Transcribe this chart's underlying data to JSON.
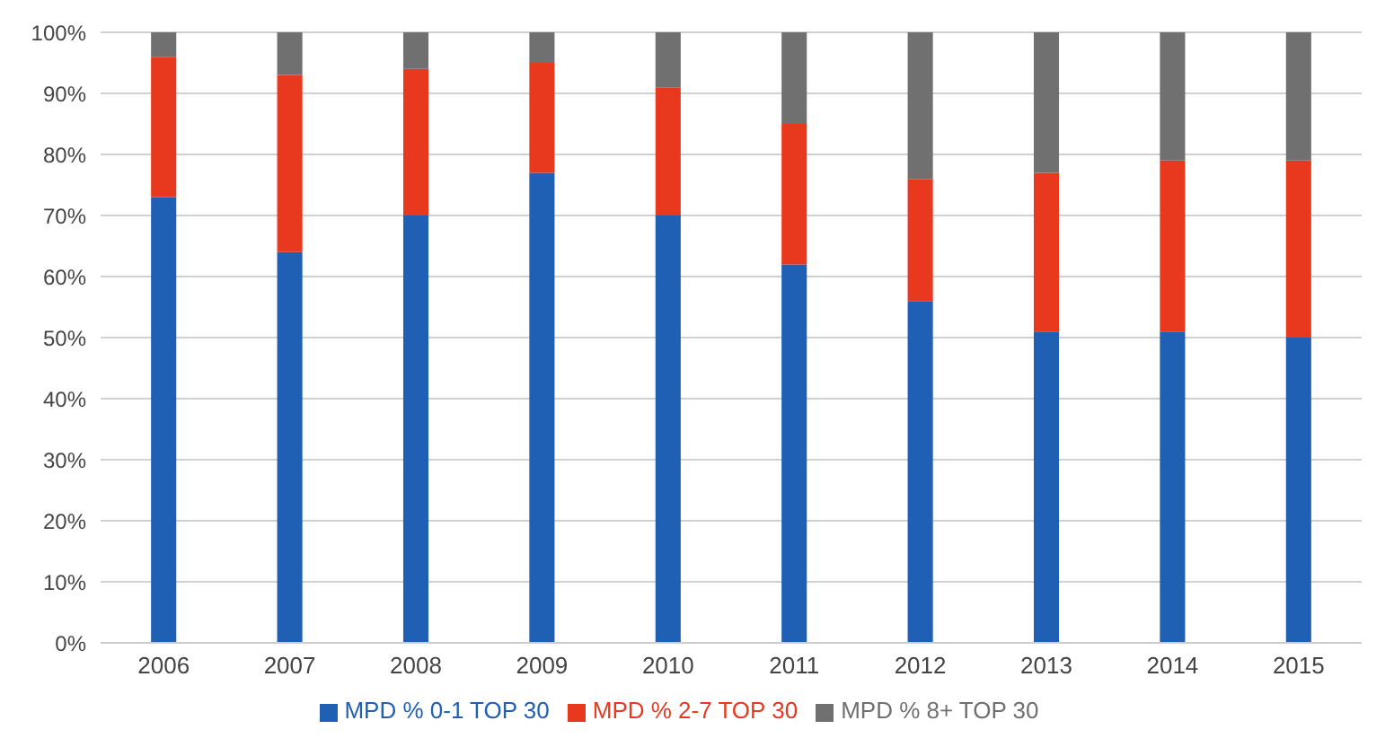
{
  "chart_data": {
    "type": "bar",
    "stacked": true,
    "categories": [
      "2006",
      "2007",
      "2008",
      "2009",
      "2010",
      "2011",
      "2012",
      "2013",
      "2014",
      "2015"
    ],
    "series": [
      {
        "name": "MPD % 0-1 TOP 30",
        "color": "#1f5fb4",
        "values": [
          73,
          64,
          70,
          77,
          70,
          62,
          56,
          51,
          51,
          50
        ]
      },
      {
        "name": "MPD % 2-7 TOP 30",
        "color": "#e8391f",
        "values": [
          23,
          29,
          24,
          18,
          21,
          23,
          20,
          26,
          28,
          29
        ]
      },
      {
        "name": "MPD % 8+ TOP 30",
        "color": "#707070",
        "values": [
          4,
          7,
          6,
          5,
          9,
          15,
          24,
          23,
          21,
          21
        ]
      }
    ],
    "ylim": [
      0,
      100
    ],
    "yticks": [
      {
        "value": 0,
        "label": "0%"
      },
      {
        "value": 10,
        "label": "10%"
      },
      {
        "value": 20,
        "label": "20%"
      },
      {
        "value": 30,
        "label": "30%"
      },
      {
        "value": 40,
        "label": "40%"
      },
      {
        "value": 50,
        "label": "50%"
      },
      {
        "value": 60,
        "label": "60%"
      },
      {
        "value": 70,
        "label": "70%"
      },
      {
        "value": 80,
        "label": "80%"
      },
      {
        "value": 90,
        "label": "90%"
      },
      {
        "value": 100,
        "label": "100%"
      }
    ],
    "grid": "y",
    "legend": "bottom"
  }
}
